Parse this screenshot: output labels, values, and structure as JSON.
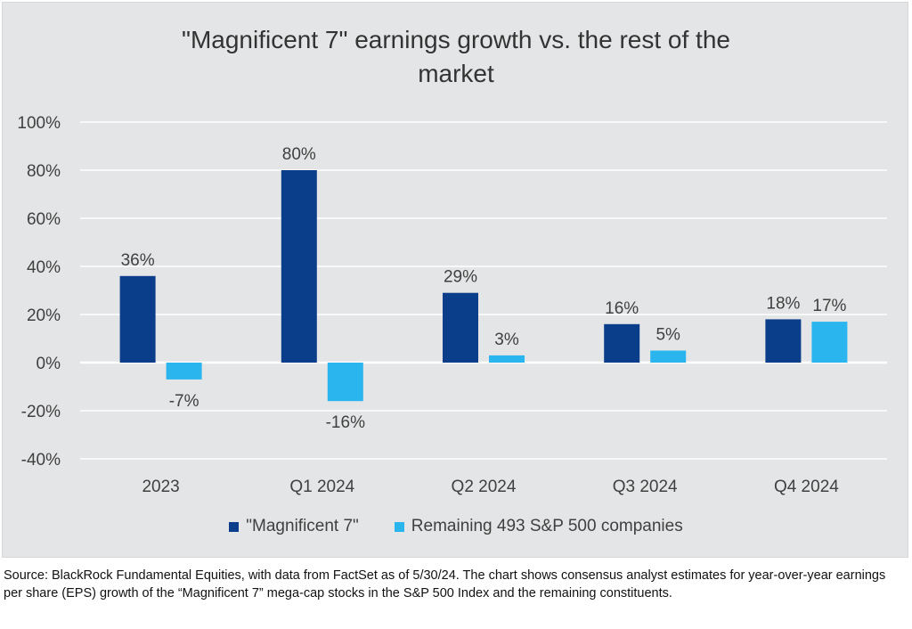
{
  "colors": {
    "panel_bg": "#e4e5e6",
    "series_1": "#0a3d8a",
    "series_2": "#2bb5ee",
    "gridline": "#ffffff"
  },
  "chart_data": {
    "type": "bar",
    "title_lines": [
      "\"Magnificent 7\" earnings growth vs. the rest of the",
      "market"
    ],
    "categories": [
      "2023",
      "Q1 2024",
      "Q2 2024",
      "Q3 2024",
      "Q4 2024"
    ],
    "series": [
      {
        "name": "\"Magnificent 7\"",
        "values": [
          36,
          80,
          29,
          16,
          18
        ],
        "labels": [
          "36%",
          "80%",
          "29%",
          "16%",
          "18%"
        ],
        "color": "#0a3d8a"
      },
      {
        "name": "Remaining 493 S&P 500 companies",
        "values": [
          -7,
          -16,
          3,
          5,
          17
        ],
        "labels": [
          "-7%",
          "-16%",
          "3%",
          "5%",
          "17%"
        ],
        "color": "#2bb5ee"
      }
    ],
    "ylim": [
      -40,
      100
    ],
    "yticks": [
      100,
      80,
      60,
      40,
      20,
      0,
      -20,
      -40
    ],
    "ytick_labels": [
      "100%",
      "80%",
      "60%",
      "40%",
      "20%",
      "0%",
      "-20%",
      "-40%"
    ],
    "xlabel": "",
    "ylabel": "",
    "grid": true,
    "legend_position": "bottom"
  },
  "source_note": "Source: BlackRock Fundamental Equities, with data from FactSet as of 5/30/24. The chart shows consensus analyst estimates for year-over-year earnings per share (EPS) growth of the “Magnificent 7” mega-cap stocks in the S&P 500 Index and the remaining constituents."
}
